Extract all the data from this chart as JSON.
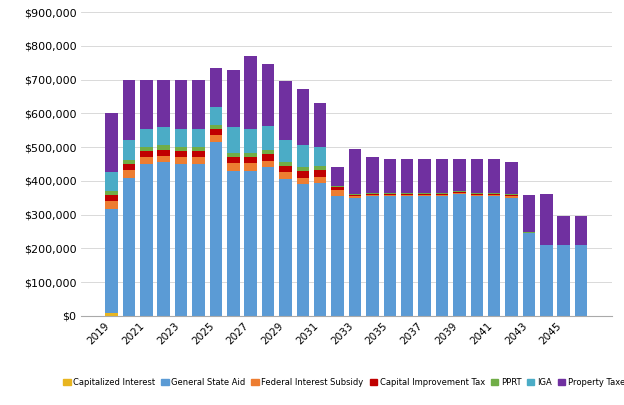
{
  "years": [
    2019,
    2020,
    2021,
    2022,
    2023,
    2024,
    2025,
    2026,
    2027,
    2028,
    2029,
    2030,
    2031,
    2032,
    2033,
    2034,
    2035,
    2036,
    2037,
    2038,
    2039,
    2040,
    2041,
    2042,
    2043,
    2044,
    2045,
    2046
  ],
  "series": {
    "Capitalized Interest": [
      8000,
      0,
      0,
      0,
      0,
      0,
      0,
      0,
      0,
      0,
      0,
      0,
      0,
      0,
      0,
      0,
      0,
      0,
      0,
      0,
      0,
      0,
      0,
      0,
      0,
      0,
      0,
      0
    ],
    "General State Aid": [
      310000,
      410000,
      450000,
      455000,
      450000,
      450000,
      515000,
      430000,
      430000,
      440000,
      405000,
      390000,
      395000,
      355000,
      350000,
      355000,
      355000,
      355000,
      355000,
      355000,
      360000,
      355000,
      355000,
      350000,
      245000,
      210000,
      210000,
      210000
    ],
    "Federal Interest Subsidy": [
      22000,
      22000,
      20000,
      20000,
      20000,
      20000,
      20000,
      22000,
      22000,
      20000,
      20000,
      20000,
      18000,
      18000,
      4000,
      4000,
      4000,
      4000,
      4000,
      4000,
      4000,
      4000,
      4000,
      4000,
      0,
      0,
      0,
      0
    ],
    "Capital Improvement Tax": [
      18000,
      18000,
      18000,
      18000,
      18000,
      18000,
      18000,
      20000,
      20000,
      20000,
      20000,
      20000,
      20000,
      10000,
      3000,
      3000,
      3000,
      3000,
      3000,
      3000,
      3000,
      3000,
      3000,
      3000,
      0,
      0,
      0,
      0
    ],
    "PPRT": [
      12000,
      12000,
      12000,
      12000,
      12000,
      12000,
      12000,
      12000,
      12000,
      12000,
      12000,
      12000,
      12000,
      3000,
      3000,
      3000,
      3000,
      3000,
      3000,
      3000,
      3000,
      3000,
      3000,
      3000,
      3000,
      0,
      0,
      0
    ],
    "IGA": [
      55000,
      60000,
      55000,
      55000,
      55000,
      55000,
      55000,
      75000,
      70000,
      70000,
      65000,
      65000,
      55000,
      0,
      0,
      0,
      0,
      0,
      0,
      0,
      0,
      0,
      0,
      0,
      0,
      0,
      0,
      0
    ],
    "Property Taxes": [
      175000,
      178000,
      145000,
      140000,
      145000,
      145000,
      115000,
      170000,
      215000,
      185000,
      175000,
      165000,
      130000,
      55000,
      135000,
      105000,
      100000,
      100000,
      100000,
      100000,
      95000,
      100000,
      100000,
      95000,
      110000,
      150000,
      85000,
      85000
    ]
  },
  "colors": {
    "Capitalized Interest": "#e8b520",
    "General State Aid": "#5b9bd5",
    "Federal Interest Subsidy": "#ed7d31",
    "Capital Improvement Tax": "#c00000",
    "PPRT": "#70ad47",
    "IGA": "#4bacc6",
    "Property Taxes": "#7030a0"
  },
  "ylim": [
    0,
    900000
  ],
  "ytick_interval": 100000,
  "background_color": "#ffffff",
  "grid_color": "#d3d3d3"
}
